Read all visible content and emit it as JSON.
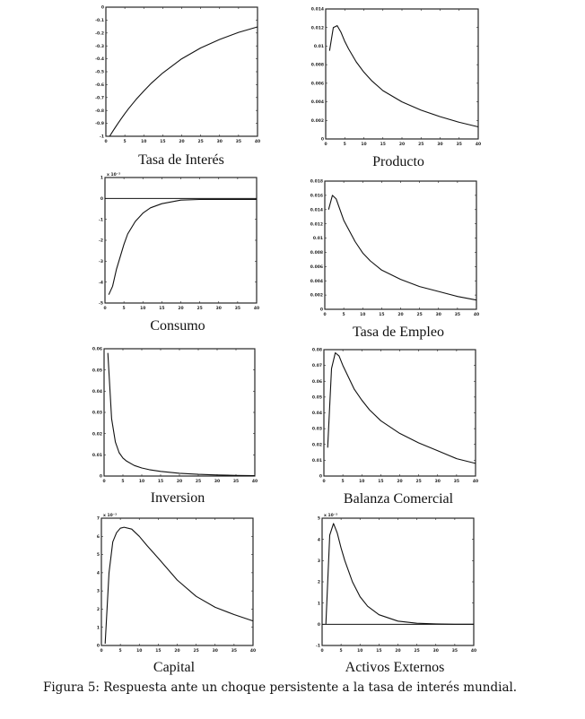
{
  "caption": "Figura 5: Respuesta ante un choque persistente a la tasa de interés mundial.",
  "chart_data": [
    {
      "id": "tasa",
      "type": "line",
      "title": "Tasa de Interés",
      "xlim": [
        0,
        40
      ],
      "ylim": [
        -1,
        0
      ],
      "multiplier": "",
      "xticks": [
        "0",
        "5",
        "10",
        "15",
        "20",
        "25",
        "30",
        "35",
        "40"
      ],
      "yticks": [
        "-1",
        "-0.9",
        "-0.8",
        "-0.7",
        "-0.6",
        "-0.5",
        "-0.4",
        "-0.3",
        "-0.2",
        "-0.1",
        "0"
      ],
      "x": [
        1,
        2,
        3,
        4,
        5,
        6,
        8,
        10,
        12,
        15,
        20,
        25,
        30,
        35,
        40
      ],
      "y": [
        -1,
        -0.953,
        -0.908,
        -0.866,
        -0.825,
        -0.786,
        -0.714,
        -0.649,
        -0.589,
        -0.51,
        -0.4,
        -0.316,
        -0.25,
        -0.195,
        -0.153
      ]
    },
    {
      "id": "producto",
      "type": "line",
      "title": "Producto",
      "xlim": [
        0,
        40
      ],
      "ylim": [
        0,
        0.014
      ],
      "multiplier": "",
      "xticks": [
        "0",
        "5",
        "10",
        "15",
        "20",
        "25",
        "30",
        "35",
        "40"
      ],
      "yticks": [
        "0",
        "0.002",
        "0.004",
        "0.006",
        "0.008",
        "0.01",
        "0.012",
        "0.014"
      ],
      "x": [
        1,
        2,
        3,
        4,
        5,
        6,
        8,
        10,
        12,
        15,
        20,
        25,
        30,
        35,
        40
      ],
      "y": [
        0.0095,
        0.012,
        0.0122,
        0.0115,
        0.0105,
        0.0097,
        0.0083,
        0.0072,
        0.0063,
        0.0052,
        0.004,
        0.0031,
        0.0024,
        0.0018,
        0.0013
      ]
    },
    {
      "id": "consumo",
      "type": "line",
      "title": "Consumo",
      "xlim": [
        0,
        40
      ],
      "ylim": [
        -5,
        1
      ],
      "multiplier": "x 10⁻³",
      "zero_line": true,
      "xticks": [
        "0",
        "5",
        "10",
        "15",
        "20",
        "25",
        "30",
        "35",
        "40"
      ],
      "yticks": [
        "-5",
        "-4",
        "-3",
        "-2",
        "-1",
        "0",
        "1"
      ],
      "x": [
        1,
        2,
        3,
        4,
        5,
        6,
        8,
        10,
        12,
        15,
        20,
        25,
        30,
        35,
        40
      ],
      "y": [
        -4.6,
        -4.2,
        -3.4,
        -2.8,
        -2.2,
        -1.7,
        -1.1,
        -0.7,
        -0.45,
        -0.25,
        -0.08,
        -0.05,
        -0.05,
        -0.05,
        -0.05
      ]
    },
    {
      "id": "empleo",
      "type": "line",
      "title": "Tasa de Empleo",
      "xlim": [
        0,
        40
      ],
      "ylim": [
        0,
        0.018
      ],
      "multiplier": "",
      "xticks": [
        "0",
        "5",
        "10",
        "15",
        "20",
        "25",
        "30",
        "35",
        "40"
      ],
      "yticks": [
        "0",
        "0.002",
        "0.004",
        "0.006",
        "0.008",
        "0.01",
        "0.012",
        "0.014",
        "0.016",
        "0.018"
      ],
      "x": [
        1,
        2,
        3,
        4,
        5,
        6,
        8,
        10,
        12,
        15,
        20,
        25,
        30,
        35,
        40
      ],
      "y": [
        0.014,
        0.016,
        0.0155,
        0.014,
        0.0125,
        0.0115,
        0.0095,
        0.0079,
        0.0068,
        0.0055,
        0.0042,
        0.0032,
        0.0025,
        0.0018,
        0.0013
      ]
    },
    {
      "id": "inversion",
      "type": "line",
      "title": "Inversion",
      "xlim": [
        0,
        40
      ],
      "ylim": [
        0,
        0.06
      ],
      "multiplier": "",
      "xticks": [
        "0",
        "5",
        "10",
        "15",
        "20",
        "25",
        "30",
        "35",
        "40"
      ],
      "yticks": [
        "0",
        "0.01",
        "0.02",
        "0.03",
        "0.04",
        "0.05",
        "0.06"
      ],
      "x": [
        1,
        2,
        3,
        4,
        5,
        6,
        8,
        10,
        12,
        15,
        20,
        25,
        30,
        35,
        40
      ],
      "y": [
        0.058,
        0.027,
        0.016,
        0.011,
        0.0085,
        0.007,
        0.005,
        0.0038,
        0.003,
        0.0022,
        0.0013,
        0.0008,
        0.0005,
        0.0003,
        0.0002
      ]
    },
    {
      "id": "balanza",
      "type": "line",
      "title": "Balanza Comercial",
      "xlim": [
        0,
        40
      ],
      "ylim": [
        0,
        0.08
      ],
      "multiplier": "",
      "xticks": [
        "0",
        "5",
        "10",
        "15",
        "20",
        "25",
        "30",
        "35",
        "40"
      ],
      "yticks": [
        "0",
        "0.01",
        "0.02",
        "0.03",
        "0.04",
        "0.05",
        "0.06",
        "0.07",
        "0.08"
      ],
      "x": [
        1,
        2,
        3,
        4,
        5,
        6,
        8,
        10,
        12,
        15,
        20,
        25,
        30,
        35,
        40
      ],
      "y": [
        0.018,
        0.068,
        0.078,
        0.076,
        0.07,
        0.065,
        0.055,
        0.048,
        0.042,
        0.035,
        0.027,
        0.021,
        0.016,
        0.011,
        0.008
      ]
    },
    {
      "id": "capital",
      "type": "line",
      "title": "Capital",
      "xlim": [
        0,
        40
      ],
      "ylim": [
        0,
        7
      ],
      "multiplier": "x 10⁻³",
      "xticks": [
        "0",
        "5",
        "10",
        "15",
        "20",
        "25",
        "30",
        "35",
        "40"
      ],
      "yticks": [
        "0",
        "1",
        "2",
        "3",
        "4",
        "5",
        "6",
        "7"
      ],
      "x": [
        1,
        2,
        3,
        4,
        5,
        6,
        8,
        10,
        12,
        15,
        20,
        25,
        30,
        35,
        40
      ],
      "y": [
        0.1,
        4.0,
        5.7,
        6.2,
        6.45,
        6.5,
        6.4,
        6.0,
        5.5,
        4.8,
        3.6,
        2.7,
        2.1,
        1.7,
        1.35
      ]
    },
    {
      "id": "activos",
      "type": "line",
      "title": "Activos Externos",
      "xlim": [
        0,
        40
      ],
      "ylim": [
        -1,
        5
      ],
      "multiplier": "x 10⁻³",
      "zero_line": true,
      "xticks": [
        "0",
        "5",
        "10",
        "15",
        "20",
        "25",
        "30",
        "35",
        "40"
      ],
      "yticks": [
        "-1",
        "0",
        "1",
        "2",
        "3",
        "4",
        "5"
      ],
      "x": [
        1,
        2,
        3,
        4,
        5,
        6,
        8,
        10,
        12,
        15,
        20,
        25,
        30,
        35,
        40
      ],
      "y": [
        0,
        4.2,
        4.75,
        4.3,
        3.6,
        3.0,
        2.0,
        1.3,
        0.85,
        0.45,
        0.15,
        0.05,
        0.02,
        0,
        0
      ]
    }
  ]
}
